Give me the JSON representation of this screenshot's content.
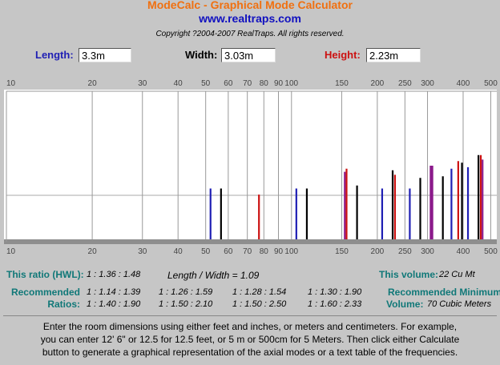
{
  "header": {
    "title": "ModeCalc - Graphical Mode Calculator",
    "site": "www.realtraps.com",
    "copyright": "Copyright ?2004-2007 RealTraps. All rights reserved."
  },
  "inputs": [
    {
      "label": "Length:",
      "value": "3.3m",
      "color": "#1f1fb4"
    },
    {
      "label": "Width:",
      "value": "3.03m",
      "color": "#000000"
    },
    {
      "label": "Height:",
      "value": "2.23m",
      "color": "#cc1111"
    }
  ],
  "graph": {
    "type": "mode-lines",
    "xscale": "log",
    "xlim": [
      10,
      525
    ],
    "xticks": [
      10,
      20,
      30,
      40,
      50,
      60,
      70,
      80,
      90,
      100,
      150,
      200,
      250,
      300,
      400,
      500
    ],
    "ylim": [
      0,
      100
    ],
    "modes": {
      "freq": [
        52.0,
        56.6,
        76.9,
        104,
        113.2,
        153.8,
        156,
        169.8,
        208,
        226.4,
        230.7,
        260,
        283,
        307.6,
        312,
        339.6,
        364,
        384.5,
        396.2,
        416,
        452.8,
        461.4,
        468
      ],
      "height": [
        35,
        35,
        31,
        35,
        35,
        46,
        48,
        37,
        35,
        47,
        44,
        35,
        42,
        50,
        50,
        43,
        48,
        53,
        52,
        49,
        57,
        57,
        54
      ],
      "colors": [
        "#1f1fb4",
        "#000000",
        "#cc1111",
        "#1f1fb4",
        "#000000",
        "#8b1a8b",
        "#cc1111",
        "#000000",
        "#1f1fb4",
        "#000000",
        "#cc1111",
        "#1f1fb4",
        "#000000",
        "#8b1a8b",
        "#8b1a8b",
        "#000000",
        "#1f1fb4",
        "#cc1111",
        "#000000",
        "#1f1fb4",
        "#000000",
        "#cc1111",
        "#8b1a8b"
      ]
    }
  },
  "ratios": {
    "this_ratio_label": "This ratio (HWL):",
    "this_ratio": "1 : 1.36 : 1.48",
    "length_width": "Length / Width = 1.09",
    "volume_label": "This volume:",
    "volume": "22 Cu Mt",
    "recommended_label": [
      "Recommended",
      "Ratios:"
    ],
    "recommended": [
      [
        "1 : 1.14 : 1.39",
        "1 : 1.26 : 1.59",
        "1 : 1.28 : 1.54",
        "1 : 1.30 : 1.90"
      ],
      [
        "1 : 1.40 : 1.90",
        "1 : 1.50 : 2.10",
        "1 : 1.50 : 2.50",
        "1 : 1.60 : 2.33"
      ]
    ],
    "min_volume_label": [
      "Recommended Minimum",
      "Volume:"
    ],
    "min_volume": "70 Cubic Meters"
  },
  "instructions": [
    "Enter the room dimensions using either feet and inches, or meters and centimeters. For example,",
    "you can enter 12' 6\" or 12.5 for 12.5 feet, or 5 m or 500cm for 5 Meters. Then click either Calculate",
    "button to generate a graphical representation of the axial modes or a text table of the frequencies."
  ]
}
